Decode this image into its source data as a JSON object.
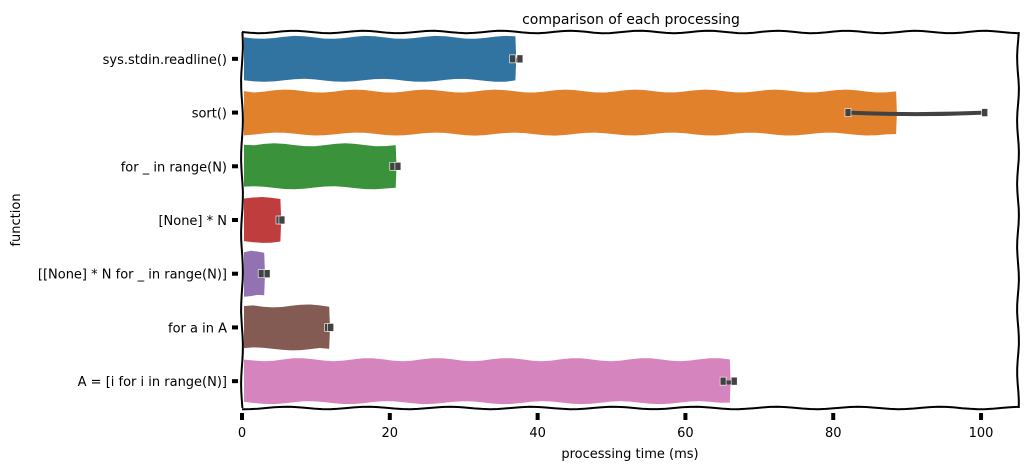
{
  "chart_data": {
    "type": "bar",
    "orientation": "horizontal",
    "title": "comparison of each processing",
    "xlabel": "processing time (ms)",
    "ylabel": "function",
    "xlim": [
      0,
      105
    ],
    "xticks": [
      0,
      20,
      40,
      60,
      80,
      100
    ],
    "categories": [
      "sys.stdin.readline()",
      "sort()",
      "for _ in range(N)",
      "[None] * N",
      "[[None] * N for _ in range(N)]",
      "for a in A",
      "A = [i for i in range(N)]"
    ],
    "values": [
      37.0,
      88.5,
      20.8,
      5.2,
      3.0,
      11.8,
      66.0
    ],
    "error_low": [
      36.6,
      82.0,
      20.4,
      5.0,
      2.6,
      11.6,
      65.1
    ],
    "error_high": [
      37.6,
      100.5,
      21.1,
      5.4,
      3.4,
      12.0,
      66.6
    ],
    "colors": [
      "#3274a1",
      "#e1812c",
      "#3a923a",
      "#c03d3e",
      "#9372b2",
      "#845b53",
      "#d684bd"
    ],
    "grid": false,
    "legend": "none",
    "style": "xkcd"
  }
}
